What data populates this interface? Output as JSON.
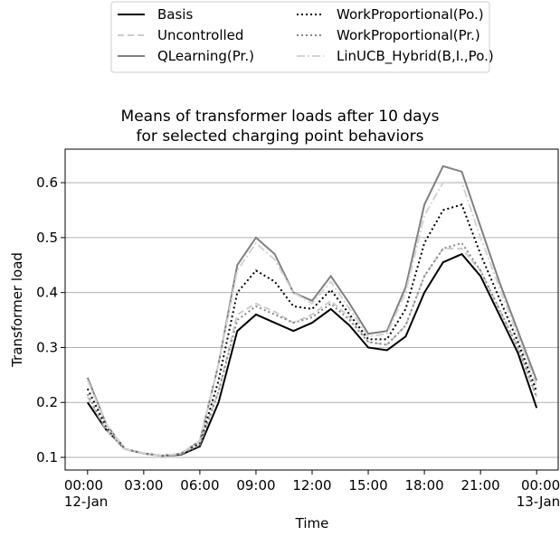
{
  "chart_data": {
    "type": "line",
    "title": "Means of transformer loads after 10 days\nfor selected charging point behaviors",
    "xlabel": "Time",
    "ylabel": "Transformer load",
    "x": [
      0,
      1,
      2,
      3,
      4,
      5,
      6,
      7,
      8,
      9,
      10,
      11,
      12,
      13,
      14,
      15,
      16,
      17,
      18,
      19,
      20,
      21,
      22,
      23,
      24
    ],
    "series": [
      {
        "name": "Basis",
        "color": "#000000",
        "dash": "solid",
        "values": [
          0.2,
          0.15,
          0.115,
          0.107,
          0.103,
          0.105,
          0.12,
          0.2,
          0.33,
          0.36,
          0.345,
          0.33,
          0.345,
          0.37,
          0.34,
          0.3,
          0.295,
          0.32,
          0.4,
          0.455,
          0.47,
          0.43,
          0.36,
          0.29,
          0.19
        ]
      },
      {
        "name": "Uncontrolled",
        "color": "#cccccc",
        "dash": "dashed",
        "values": [
          0.21,
          0.15,
          0.115,
          0.107,
          0.103,
          0.106,
          0.125,
          0.22,
          0.36,
          0.38,
          0.365,
          0.345,
          0.36,
          0.385,
          0.355,
          0.31,
          0.305,
          0.34,
          0.43,
          0.48,
          0.48,
          0.44,
          0.37,
          0.3,
          0.21
        ]
      },
      {
        "name": "QLearning(Pr.)",
        "color": "#808080",
        "dash": "solid",
        "values": [
          0.245,
          0.16,
          0.115,
          0.107,
          0.103,
          0.107,
          0.13,
          0.27,
          0.45,
          0.5,
          0.47,
          0.4,
          0.385,
          0.43,
          0.38,
          0.325,
          0.33,
          0.41,
          0.56,
          0.63,
          0.62,
          0.52,
          0.42,
          0.33,
          0.24
        ]
      },
      {
        "name": "WorkProportional(Po.)",
        "color": "#000000",
        "dash": "dotted",
        "values": [
          0.225,
          0.155,
          0.115,
          0.107,
          0.103,
          0.106,
          0.125,
          0.24,
          0.4,
          0.44,
          0.42,
          0.375,
          0.37,
          0.405,
          0.36,
          0.315,
          0.315,
          0.37,
          0.49,
          0.55,
          0.56,
          0.47,
          0.39,
          0.31,
          0.22
        ]
      },
      {
        "name": "WorkProportional(Pr.)",
        "color": "#888888",
        "dash": "dotted",
        "values": [
          0.215,
          0.15,
          0.115,
          0.107,
          0.103,
          0.106,
          0.122,
          0.22,
          0.35,
          0.375,
          0.36,
          0.345,
          0.355,
          0.38,
          0.35,
          0.31,
          0.305,
          0.34,
          0.43,
          0.48,
          0.49,
          0.44,
          0.37,
          0.3,
          0.21
        ]
      },
      {
        "name": "LinUCB_Hybrid(B,I.,Po.)",
        "color": "#d3d3d3",
        "dash": "dashdot",
        "values": [
          0.24,
          0.16,
          0.115,
          0.107,
          0.103,
          0.107,
          0.13,
          0.27,
          0.44,
          0.49,
          0.46,
          0.4,
          0.38,
          0.42,
          0.37,
          0.32,
          0.325,
          0.4,
          0.54,
          0.6,
          0.6,
          0.5,
          0.41,
          0.32,
          0.23
        ]
      }
    ],
    "xlim": [
      -1.2,
      25.2
    ],
    "xticks": [
      {
        "value": 0,
        "label": "00:00\n12-Jan"
      },
      {
        "value": 3,
        "label": "03:00"
      },
      {
        "value": 6,
        "label": "06:00"
      },
      {
        "value": 9,
        "label": "09:00"
      },
      {
        "value": 12,
        "label": "12:00"
      },
      {
        "value": 15,
        "label": "15:00"
      },
      {
        "value": 18,
        "label": "18:00"
      },
      {
        "value": 21,
        "label": "21:00"
      },
      {
        "value": 24,
        "label": "00:00\n13-Jan"
      }
    ],
    "ylim": [
      0.077,
      0.661
    ],
    "yticks": [
      0.1,
      0.2,
      0.3,
      0.4,
      0.5,
      0.6
    ],
    "grid": true,
    "legend": "top"
  }
}
